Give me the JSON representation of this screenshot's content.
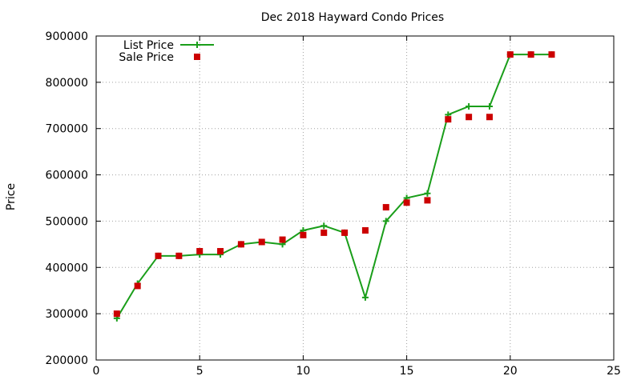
{
  "chart_data": {
    "type": "line",
    "title": "Dec 2018 Hayward Condo Prices",
    "xlabel": "",
    "ylabel": "Price",
    "xlim": [
      0,
      25
    ],
    "ylim": [
      200000,
      900000
    ],
    "xticks": [
      0,
      5,
      10,
      15,
      20,
      25
    ],
    "yticks": [
      200000,
      300000,
      400000,
      500000,
      600000,
      700000,
      800000,
      900000
    ],
    "grid": true,
    "legend_position": "top-left",
    "series": [
      {
        "name": "List Price",
        "style": "line+cross",
        "color": "#1a9e1a",
        "x": [
          1,
          2,
          3,
          4,
          5,
          6,
          7,
          8,
          9,
          10,
          11,
          12,
          13,
          14,
          15,
          16,
          17,
          18,
          19,
          20,
          21,
          22
        ],
        "values": [
          290000,
          365000,
          425000,
          425000,
          428000,
          428000,
          450000,
          455000,
          450000,
          480000,
          490000,
          475000,
          335000,
          500000,
          550000,
          560000,
          730000,
          748000,
          748000,
          860000,
          860000,
          860000
        ]
      },
      {
        "name": "Sale Price",
        "style": "square",
        "color": "#cc0000",
        "x": [
          1,
          2,
          3,
          4,
          5,
          6,
          7,
          8,
          9,
          10,
          11,
          12,
          13,
          14,
          15,
          16,
          17,
          18,
          19,
          20,
          21,
          22
        ],
        "values": [
          300000,
          360000,
          425000,
          425000,
          435000,
          435000,
          450000,
          455000,
          460000,
          470000,
          475000,
          475000,
          480000,
          530000,
          540000,
          545000,
          720000,
          725000,
          725000,
          860000,
          860000,
          860000
        ]
      }
    ]
  }
}
